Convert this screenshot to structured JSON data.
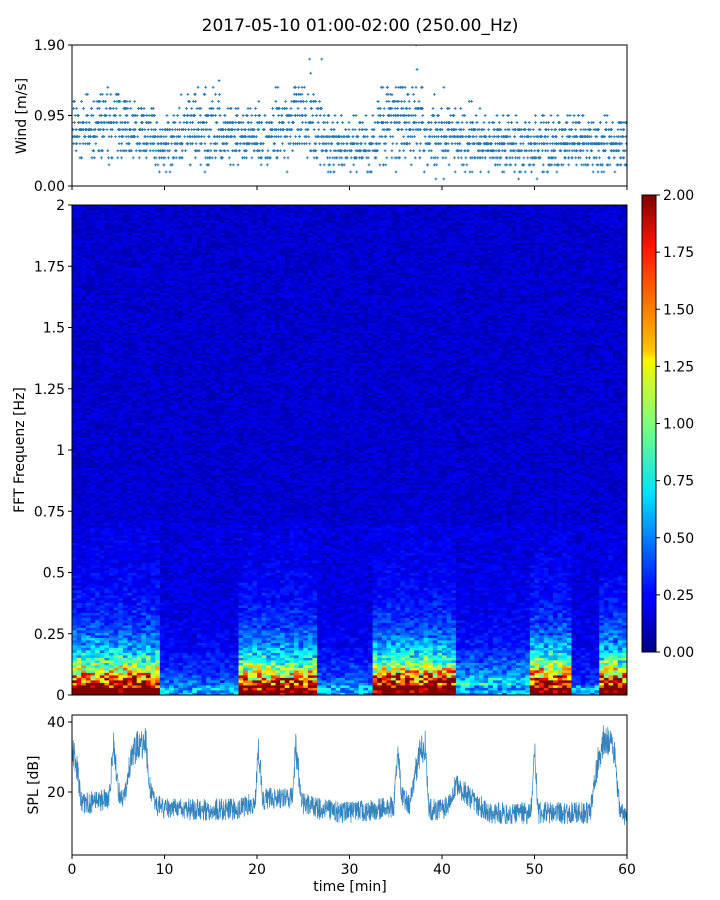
{
  "title": "2017-05-10 01:00-02:00 (250.00_Hz)",
  "chart_data": [
    {
      "type": "scatter",
      "name": "wind",
      "ylabel": "Wind [m/s]",
      "ylim": [
        0.0,
        1.9
      ],
      "yticks": [
        "0.00",
        "0.95",
        "1.90"
      ],
      "xlim": [
        0,
        60
      ],
      "marker": "+",
      "color": "#1f77b4",
      "quantization_step": 0.095,
      "segments": [
        {
          "x": [
            0,
            3
          ],
          "base": 0.76,
          "spread": 0.38
        },
        {
          "x": [
            3,
            6
          ],
          "base": 0.85,
          "spread": 0.48
        },
        {
          "x": [
            6,
            9
          ],
          "base": 0.76,
          "spread": 0.38
        },
        {
          "x": [
            9,
            12
          ],
          "base": 0.57,
          "spread": 0.38
        },
        {
          "x": [
            12,
            16
          ],
          "base": 0.76,
          "spread": 0.48
        },
        {
          "x": [
            16,
            22
          ],
          "base": 0.66,
          "spread": 0.38
        },
        {
          "x": [
            22,
            27
          ],
          "base": 0.85,
          "spread": 0.57
        },
        {
          "x": [
            27,
            33
          ],
          "base": 0.57,
          "spread": 0.38
        },
        {
          "x": [
            33,
            38
          ],
          "base": 0.85,
          "spread": 0.57
        },
        {
          "x": [
            38,
            43
          ],
          "base": 0.66,
          "spread": 0.48
        },
        {
          "x": [
            43,
            50
          ],
          "base": 0.57,
          "spread": 0.38
        },
        {
          "x": [
            50,
            56
          ],
          "base": 0.57,
          "spread": 0.38
        },
        {
          "x": [
            56,
            60
          ],
          "base": 0.57,
          "spread": 0.38
        }
      ],
      "peaks": [
        {
          "x": 11.6,
          "y": 1.05
        },
        {
          "x": 11.8,
          "y": 1.23
        },
        {
          "x": 15.9,
          "y": 1.42
        },
        {
          "x": 20.2,
          "y": 1.14
        },
        {
          "x": 25.7,
          "y": 1.71
        },
        {
          "x": 25.8,
          "y": 1.52
        },
        {
          "x": 27.0,
          "y": 1.71
        },
        {
          "x": 34.6,
          "y": 1.23
        },
        {
          "x": 37.2,
          "y": 1.9
        },
        {
          "x": 37.3,
          "y": 1.57
        },
        {
          "x": 40.2,
          "y": 1.33
        },
        {
          "x": 43.2,
          "y": 1.14
        }
      ]
    },
    {
      "type": "heatmap",
      "name": "spectrogram",
      "ylabel": "FFT Frequenz [Hz]",
      "ylim": [
        0,
        2
      ],
      "yticks": [
        "0",
        "0.25",
        "0.5",
        "0.75",
        "1",
        "1.25",
        "1.5",
        "1.75",
        "2"
      ],
      "xlim": [
        0,
        60
      ],
      "colormap": "jet",
      "colorbar": {
        "range": [
          0.0,
          2.0
        ],
        "ticks": [
          "0.00",
          "0.25",
          "0.50",
          "0.75",
          "1.00",
          "1.25",
          "1.50",
          "1.75",
          "2.00"
        ]
      },
      "time_segments": [
        {
          "x": [
            0,
            9.5
          ],
          "level": 1.0
        },
        {
          "x": [
            9.5,
            18
          ],
          "level": 0.15
        },
        {
          "x": [
            18,
            26.5
          ],
          "level": 0.9
        },
        {
          "x": [
            26.5,
            32.5
          ],
          "level": 0.15
        },
        {
          "x": [
            32.5,
            41.5
          ],
          "level": 1.0
        },
        {
          "x": [
            41.5,
            49.5
          ],
          "level": 0.3
        },
        {
          "x": [
            49.5,
            53.8
          ],
          "level": 1.0
        },
        {
          "x": [
            53.8,
            57
          ],
          "level": 0.1
        },
        {
          "x": [
            57,
            60
          ],
          "level": 1.0
        }
      ],
      "background_level": 0.18
    },
    {
      "type": "line",
      "name": "spl",
      "ylabel": "SPL [dB]",
      "xlabel": "time [min]",
      "ylim": [
        2,
        42
      ],
      "yticks": [
        "20",
        "40"
      ],
      "ytick_values": [
        20,
        40
      ],
      "xlim": [
        0,
        60
      ],
      "xticks": [
        "0",
        "10",
        "20",
        "30",
        "40",
        "50",
        "60"
      ],
      "xtick_values": [
        0,
        10,
        20,
        30,
        40,
        50,
        60
      ],
      "color": "#1f77b4",
      "series": [
        {
          "x": [
            0,
            0.5,
            1,
            2,
            4,
            4.5,
            5,
            5.5,
            6.5,
            7,
            8,
            8.5,
            9,
            12,
            15,
            18,
            19.8,
            20.2,
            20.6,
            22,
            23.8,
            24.2,
            24.8,
            27,
            30,
            33,
            34.8,
            35.2,
            35.6,
            36.5,
            37.5,
            38.2,
            38.6,
            40,
            40.8,
            41.5,
            45,
            49.6,
            50.0,
            50.4,
            53,
            56,
            56.8,
            57.5,
            58.5,
            59.2,
            60
          ],
          "y": [
            32,
            28,
            17,
            17,
            18,
            33,
            20,
            17,
            30,
            33,
            34,
            20,
            16,
            15,
            15,
            15,
            17,
            33,
            18,
            18,
            18,
            33,
            17,
            15,
            14,
            15,
            16,
            33,
            19,
            16,
            30,
            34,
            15,
            15,
            17,
            22,
            14,
            14,
            33,
            14,
            14,
            14,
            28,
            35,
            34,
            15,
            12
          ]
        }
      ]
    }
  ]
}
